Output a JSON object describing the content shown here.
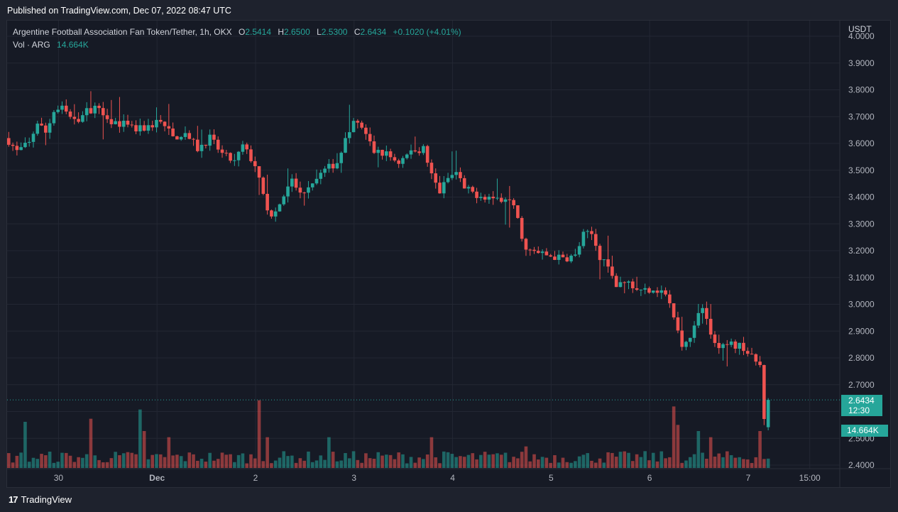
{
  "published": "Published on TradingView.com, Dec 07, 2022 08:47 UTC",
  "legend": {
    "symbol": "Argentine Football Association Fan Token/Tether, 1h, OKX",
    "open_label": "O",
    "open": "2.5414",
    "high_label": "H",
    "high": "2.6500",
    "low_label": "L",
    "low": "2.5300",
    "close_label": "C",
    "close": "2.6434",
    "change": "+0.1020 (+4.01%)",
    "vol_label": "Vol · ARG",
    "vol_value": "14.664K"
  },
  "currency": "USDT",
  "last_price": {
    "price": "2.6434",
    "countdown": "12:30"
  },
  "last_volume": "14.664K",
  "brand": "TradingView",
  "colors": {
    "up": "#26a69a",
    "down": "#ef5350",
    "background": "#161a25",
    "grid": "#232733"
  },
  "chart_data": {
    "type": "candlestick",
    "title": "Argentine Football Association Fan Token/Tether, 1h, OKX",
    "y_ticks": [
      2.4,
      2.5,
      2.6,
      2.7,
      2.8,
      2.9,
      3.0,
      3.1,
      3.2,
      3.3,
      3.4,
      3.5,
      3.6,
      3.7,
      3.8,
      3.9,
      4.0
    ],
    "y_tick_labels": [
      "2.4000",
      "2.5000",
      "2.6000",
      "2.7000",
      "2.8000",
      "2.9000",
      "3.0000",
      "3.1000",
      "3.2000",
      "3.3000",
      "3.4000",
      "3.5000",
      "3.6000",
      "3.7000",
      "3.8000",
      "3.9000",
      "4.0000"
    ],
    "ylim": [
      2.37,
      4.0
    ],
    "x_tick_labels": [
      "30",
      "Dec",
      "2",
      "3",
      "4",
      "5",
      "6",
      "7",
      "15:00"
    ],
    "x_tick_positions": [
      12,
      36,
      60,
      84,
      108,
      132,
      156,
      180,
      195
    ],
    "price_path": [
      [
        0,
        3.61
      ],
      [
        2,
        3.57
      ],
      [
        5,
        3.6
      ],
      [
        7,
        3.68
      ],
      [
        9,
        3.64
      ],
      [
        11,
        3.72
      ],
      [
        13,
        3.73
      ],
      [
        16,
        3.68
      ],
      [
        19,
        3.72
      ],
      [
        22,
        3.74
      ],
      [
        25,
        3.68
      ],
      [
        28,
        3.67
      ],
      [
        31,
        3.65
      ],
      [
        34,
        3.66
      ],
      [
        37,
        3.69
      ],
      [
        40,
        3.62
      ],
      [
        43,
        3.64
      ],
      [
        46,
        3.58
      ],
      [
        49,
        3.62
      ],
      [
        52,
        3.56
      ],
      [
        55,
        3.53
      ],
      [
        57,
        3.59
      ],
      [
        60,
        3.52
      ],
      [
        62,
        3.4
      ],
      [
        64,
        3.32
      ],
      [
        66,
        3.37
      ],
      [
        69,
        3.46
      ],
      [
        71,
        3.41
      ],
      [
        74,
        3.46
      ],
      [
        77,
        3.5
      ],
      [
        80,
        3.53
      ],
      [
        82,
        3.61
      ],
      [
        84,
        3.68
      ],
      [
        86,
        3.66
      ],
      [
        89,
        3.57
      ],
      [
        92,
        3.56
      ],
      [
        95,
        3.53
      ],
      [
        98,
        3.57
      ],
      [
        101,
        3.58
      ],
      [
        103,
        3.48
      ],
      [
        105,
        3.42
      ],
      [
        107,
        3.47
      ],
      [
        109,
        3.49
      ],
      [
        111,
        3.43
      ],
      [
        114,
        3.41
      ],
      [
        117,
        3.4
      ],
      [
        120,
        3.39
      ],
      [
        123,
        3.37
      ],
      [
        126,
        3.2
      ],
      [
        129,
        3.19
      ],
      [
        132,
        3.18
      ],
      [
        135,
        3.17
      ],
      [
        138,
        3.18
      ],
      [
        140,
        3.26
      ],
      [
        142,
        3.26
      ],
      [
        144,
        3.18
      ],
      [
        146,
        3.13
      ],
      [
        148,
        3.07
      ],
      [
        151,
        3.08
      ],
      [
        154,
        3.05
      ],
      [
        157,
        3.06
      ],
      [
        160,
        3.04
      ],
      [
        162,
        2.95
      ],
      [
        164,
        2.84
      ],
      [
        167,
        2.91
      ],
      [
        169,
        3.0
      ],
      [
        171,
        2.88
      ],
      [
        173,
        2.83
      ],
      [
        176,
        2.85
      ],
      [
        179,
        2.84
      ],
      [
        181,
        2.8
      ],
      [
        183,
        2.77
      ],
      [
        184,
        2.58
      ],
      [
        185,
        2.64
      ]
    ],
    "volume_scale": [
      0,
      30
    ],
    "volume_spikes": {
      "4": 15,
      "20": 16,
      "32": 19,
      "33": 12,
      "39": 10,
      "61": 22,
      "63": 10,
      "78": 10,
      "103": 10,
      "126": 7,
      "162": 20,
      "163": 14,
      "168": 12,
      "171": 10,
      "183": 12
    },
    "last_bar": {
      "open": 2.5414,
      "high": 2.65,
      "low": 2.53,
      "close": 2.6434,
      "volume": "14.664K"
    }
  }
}
